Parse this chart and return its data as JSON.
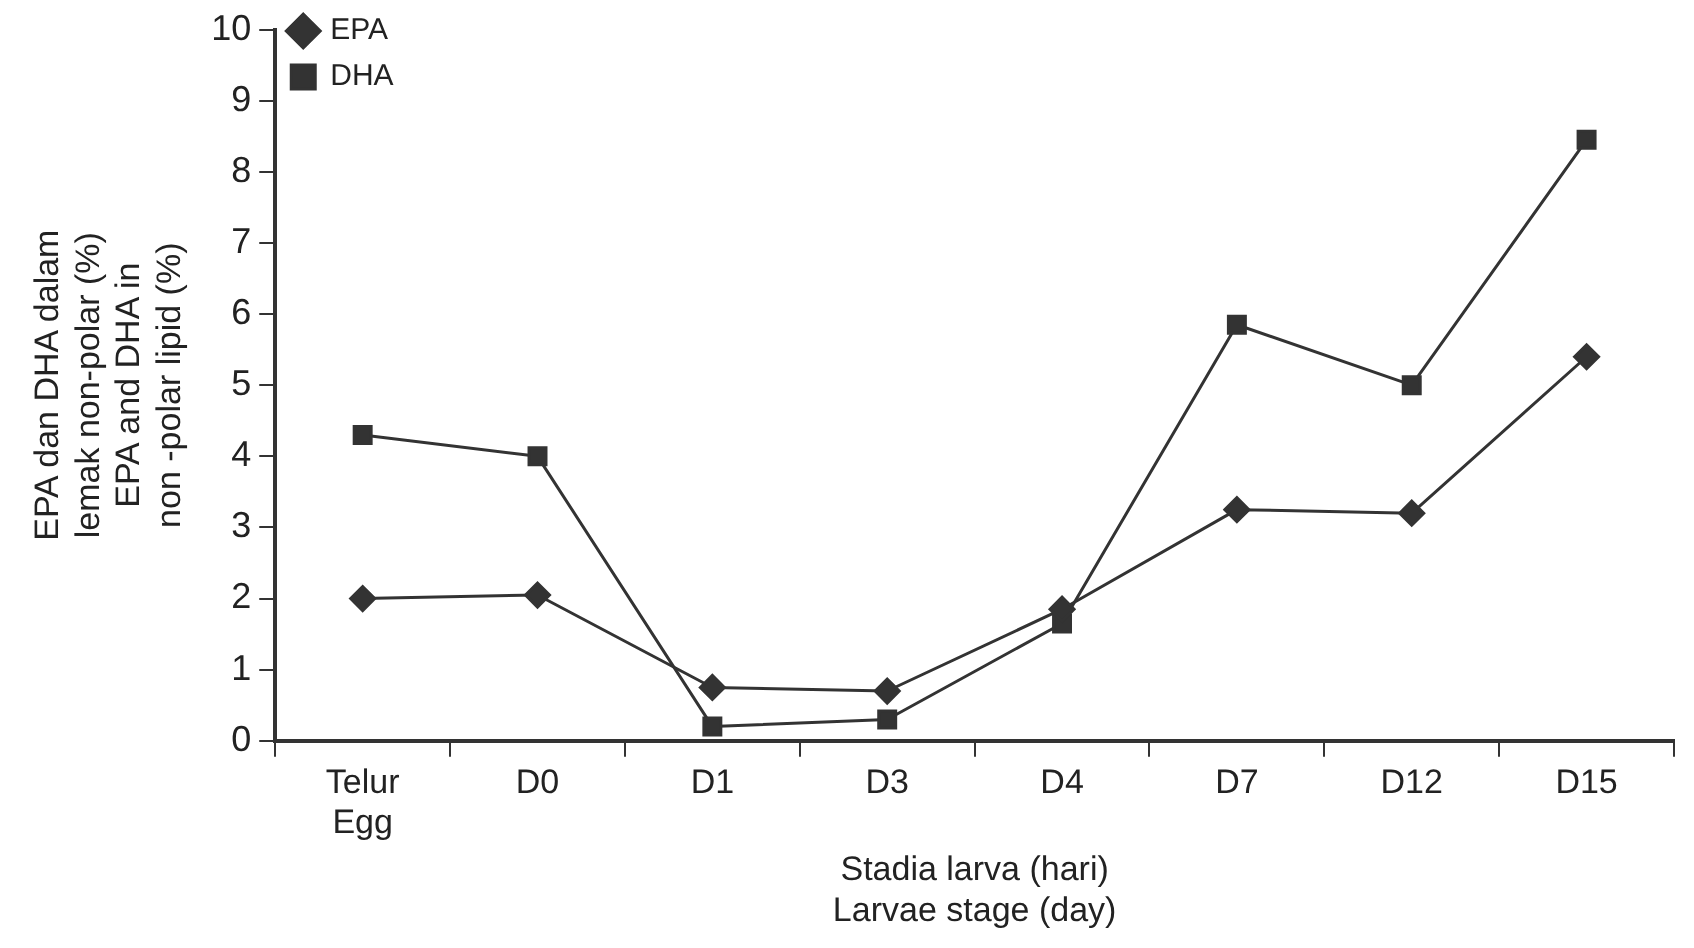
{
  "chart_data": {
    "type": "line",
    "categories": [
      "Telur\nEgg",
      "D0",
      "D1",
      "D3",
      "D4",
      "D7",
      "D12",
      "D15"
    ],
    "series": [
      {
        "name": "EPA",
        "color": "#333333",
        "marker": "diamond",
        "values": [
          2.0,
          2.05,
          0.75,
          0.7,
          1.85,
          3.25,
          3.2,
          5.4
        ]
      },
      {
        "name": "DHA",
        "color": "#333333",
        "marker": "square",
        "values": [
          4.3,
          4.0,
          0.2,
          0.3,
          1.65,
          5.85,
          5.0,
          8.45
        ]
      }
    ],
    "xlabel": "Stadia larva (hari)\nLarvae stage (day)",
    "ylabel": "EPA dan DHA dalam\nlemak non-polar (%)\nEPA and DHA in\nnon -polar lipid (%)",
    "ylim": [
      0,
      10
    ],
    "yticks": [
      0,
      1,
      2,
      3,
      4,
      5,
      6,
      7,
      8,
      9,
      10
    ],
    "grid": false,
    "legend": "top left",
    "line_style": "solid"
  }
}
